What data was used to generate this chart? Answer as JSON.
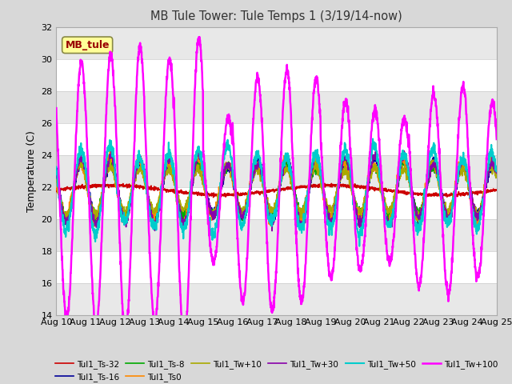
{
  "title": "MB Tule Tower: Tule Temps 1 (3/19/14-now)",
  "ylabel": "Temperature (C)",
  "ylim": [
    14,
    32
  ],
  "yticks": [
    14,
    16,
    18,
    20,
    22,
    24,
    26,
    28,
    30,
    32
  ],
  "xlim": [
    0,
    15
  ],
  "xtick_labels": [
    "Aug 10",
    "Aug 11",
    "Aug 12",
    "Aug 13",
    "Aug 14",
    "Aug 15",
    "Aug 16",
    "Aug 17",
    "Aug 18",
    "Aug 19",
    "Aug 20",
    "Aug 21",
    "Aug 22",
    "Aug 23",
    "Aug 24",
    "Aug 25"
  ],
  "fig_bg_color": "#d8d8d8",
  "plot_bg_color": "#ffffff",
  "grid_band_color": "#e8e8e8",
  "series": [
    {
      "label": "Tul1_Ts-32",
      "color": "#cc0000",
      "lw": 1.2
    },
    {
      "label": "Tul1_Ts-16",
      "color": "#000099",
      "lw": 1.2
    },
    {
      "label": "Tul1_Ts-8",
      "color": "#00aa00",
      "lw": 1.2
    },
    {
      "label": "Tul1_Ts0",
      "color": "#ff8800",
      "lw": 1.2
    },
    {
      "label": "Tul1_Tw+10",
      "color": "#aaaa00",
      "lw": 1.2
    },
    {
      "label": "Tul1_Tw+30",
      "color": "#8800aa",
      "lw": 1.2
    },
    {
      "label": "Tul1_Tw+50",
      "color": "#00cccc",
      "lw": 1.5
    },
    {
      "label": "Tul1_Tw+100",
      "color": "#ff00ff",
      "lw": 1.8
    }
  ],
  "annotation_box": {
    "text": "MB_tule",
    "color": "#990000",
    "bg": "#ffff99",
    "border": "#888844"
  }
}
